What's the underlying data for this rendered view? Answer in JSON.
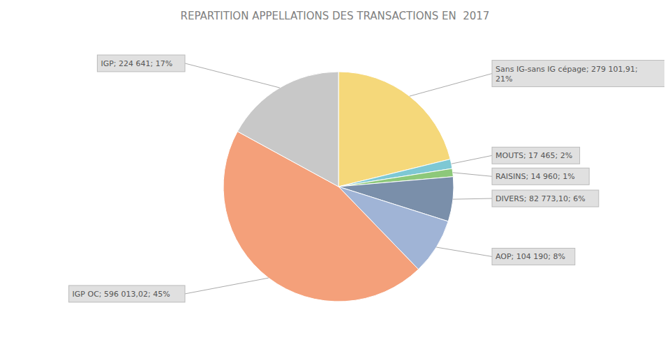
{
  "chart_data": {
    "type": "pie",
    "title": "REPARTITION APPELLATIONS DES TRANSACTIONS EN  2017",
    "categories": [
      "Sans IG-sans IG cépage",
      "MOUTS",
      "RAISINS",
      "DIVERS",
      "AOP",
      "IGP OC",
      "IGP"
    ],
    "values": [
      279101.91,
      17465,
      14960,
      82773.1,
      104190,
      596013.02,
      224641
    ],
    "colors": [
      "#F5D87A",
      "#7EC8D4",
      "#8DC87A",
      "#7A8FAA",
      "#A0B4D6",
      "#F4A07A",
      "#C8C8C8"
    ],
    "annotations": [
      "Sans IG-sans IG cépage; 279 101,91;\n21%",
      "MOUTS; 17 465; 2%",
      "RAISINS; 14 960; 1%",
      "DIVERS; 82 773,10; 6%",
      "AOP; 104 190; 8%",
      "IGP OC; 596 013,02; 45%",
      "IGP; 224 641; 17%"
    ]
  }
}
